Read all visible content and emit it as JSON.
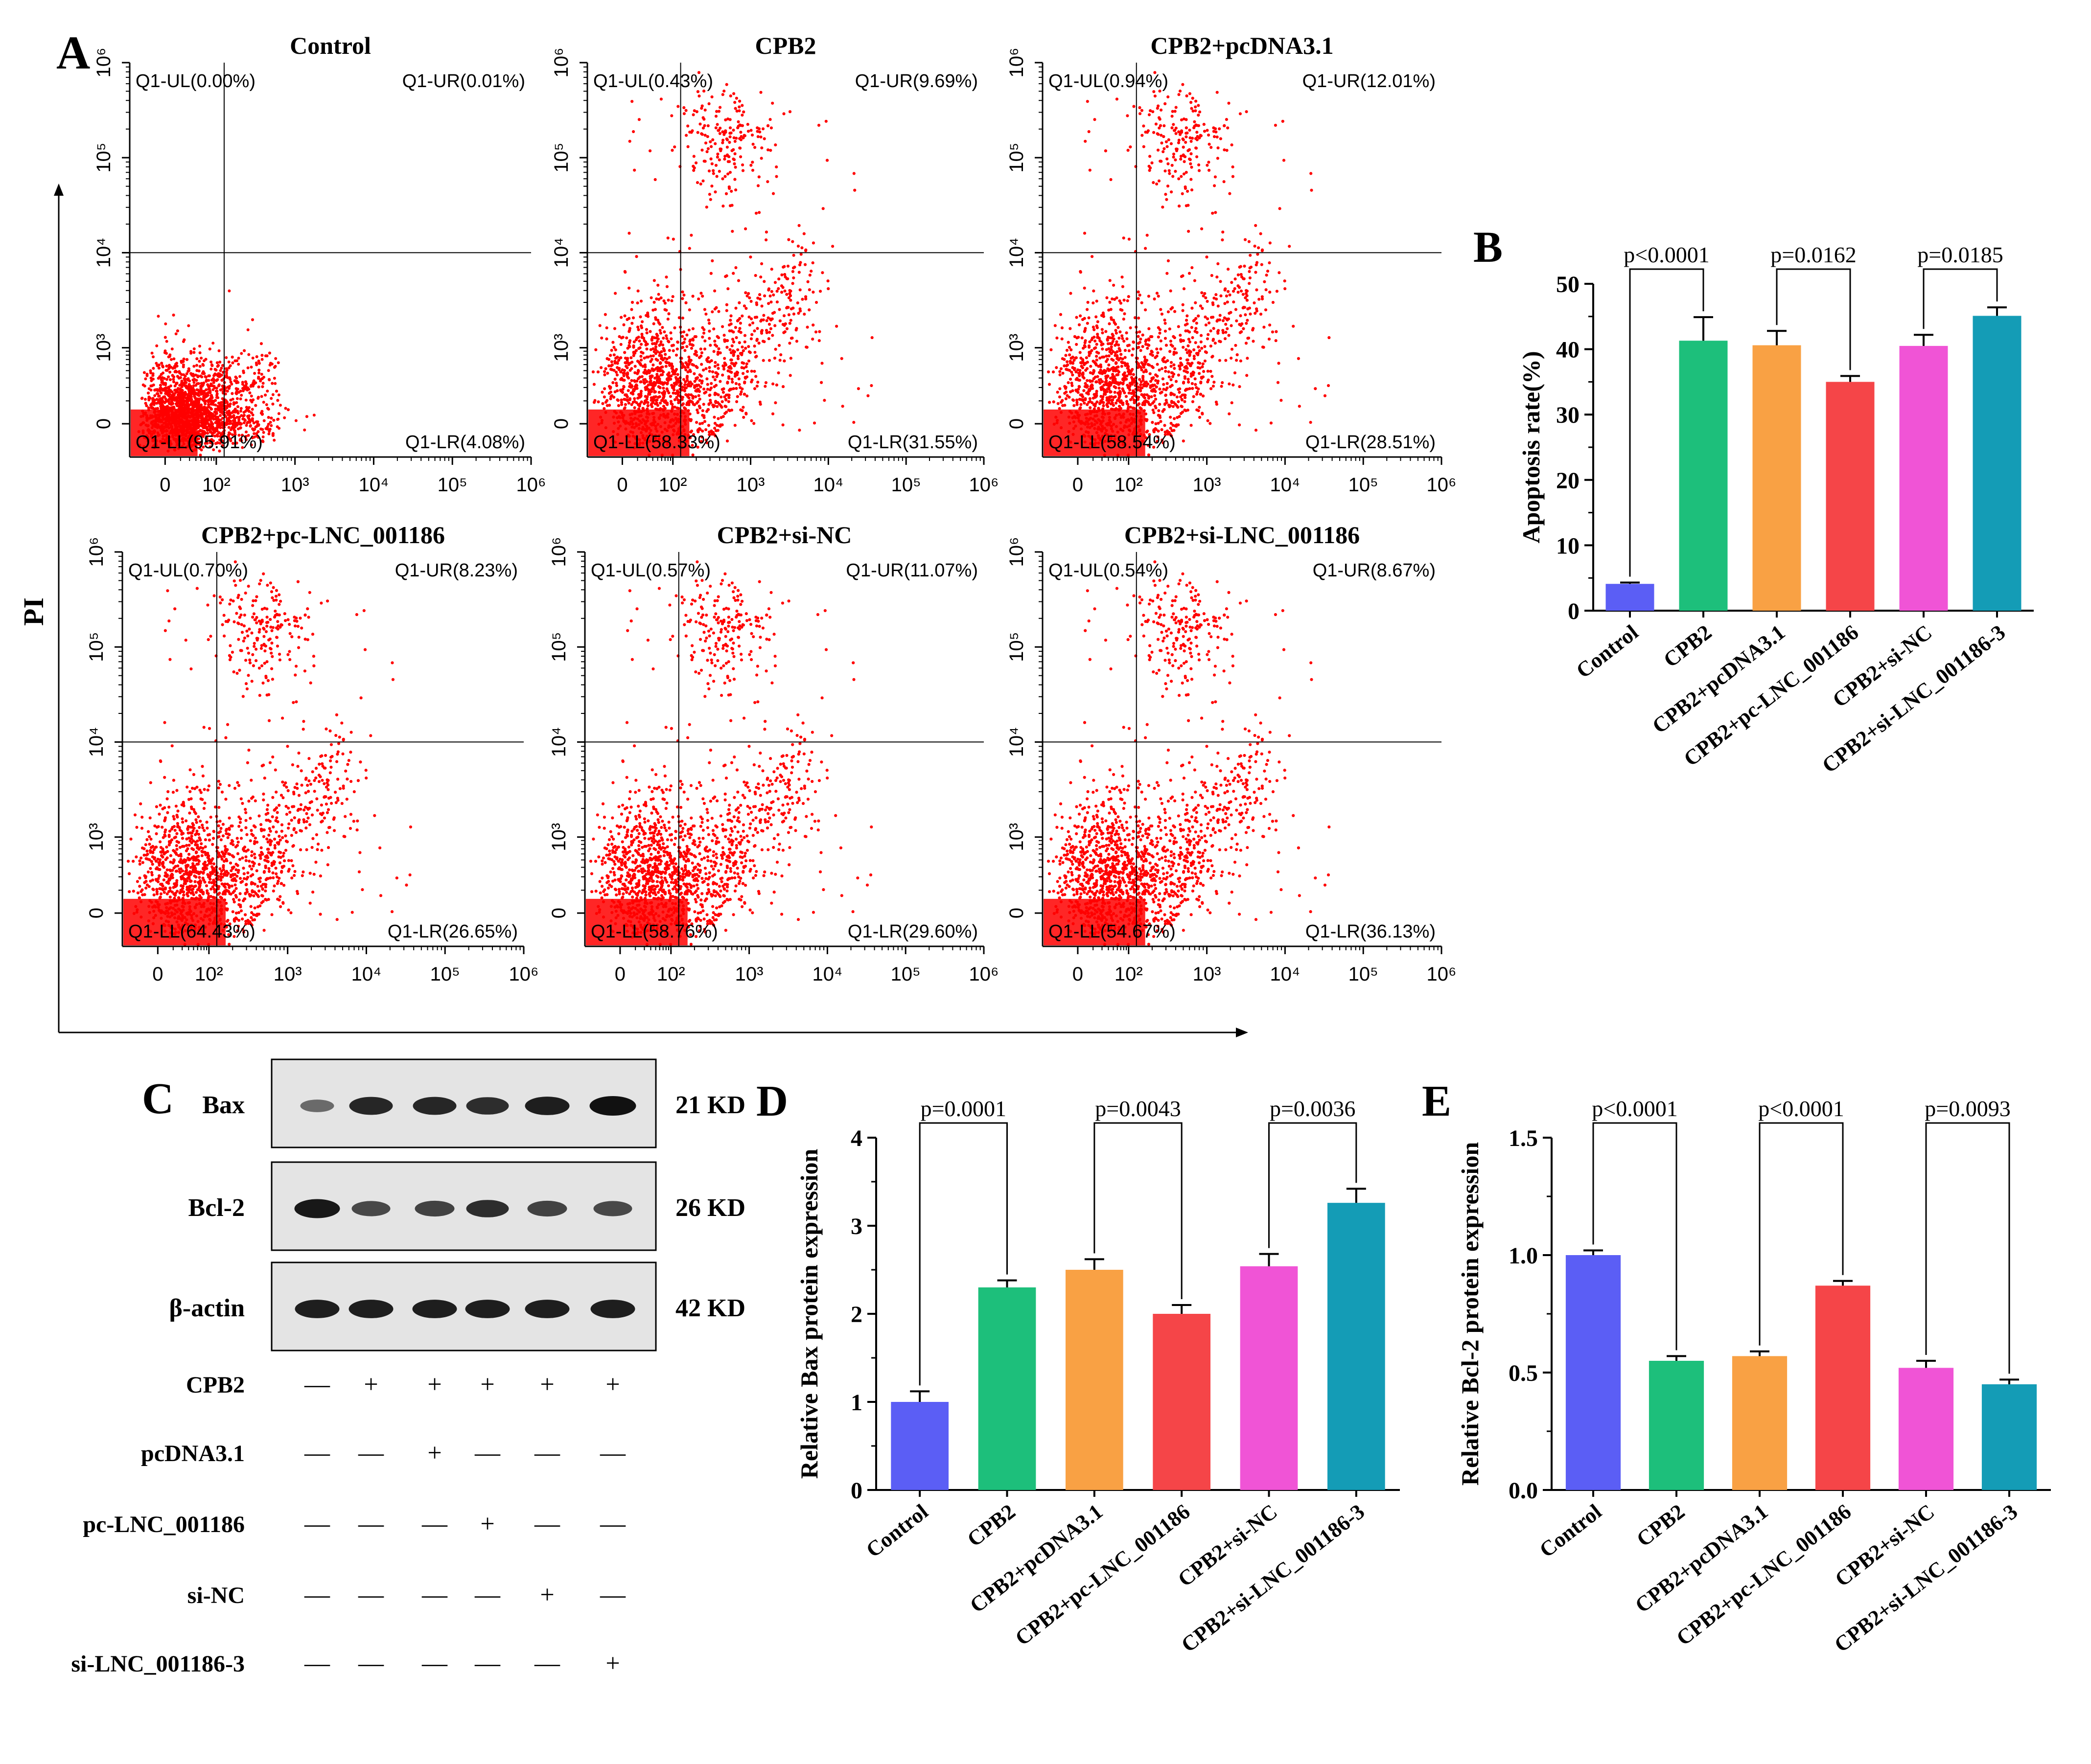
{
  "panel_letters": {
    "a": "A",
    "b": "B",
    "c": "C",
    "d": "D",
    "e": "E"
  },
  "flow": {
    "y_axis_label": "PI",
    "x_ticks": [
      "0",
      "10²",
      "10³",
      "10⁴",
      "10⁵",
      "10⁶"
    ],
    "y_ticks": [
      "0",
      "10³",
      "10⁴",
      "10⁵",
      "10⁶"
    ],
    "point_color": "#ff0000"
  },
  "blot": {
    "bands": [
      {
        "label": "Bax",
        "size": "21 KD"
      },
      {
        "label": "Bcl-2",
        "size": "26 KD"
      },
      {
        "label": "β-actin",
        "size": "42 KD"
      }
    ],
    "treatments": [
      {
        "label": "CPB2",
        "marks": [
          "—",
          "+",
          "+",
          "+",
          "+",
          "+"
        ]
      },
      {
        "label": "pcDNA3.1",
        "marks": [
          "—",
          "—",
          "+",
          "—",
          "—",
          "—"
        ]
      },
      {
        "label": "pc-LNC_001186",
        "marks": [
          "—",
          "—",
          "—",
          "+",
          "—",
          "—"
        ]
      },
      {
        "label": "si-NC",
        "marks": [
          "—",
          "—",
          "—",
          "—",
          "+",
          "—"
        ]
      },
      {
        "label": "si-LNC_001186-3",
        "marks": [
          "—",
          "—",
          "—",
          "—",
          "—",
          "+"
        ]
      }
    ]
  },
  "chart_data": [
    {
      "type": "scatter",
      "panel": "A",
      "title": "Control",
      "quadrants": {
        "ul": "Q1-UL(0.00%)",
        "ur": "Q1-UR(0.01%)",
        "ll": "Q1-LL(95.91%)",
        "lr": "Q1-LR(4.08%)"
      },
      "percentages": {
        "ul": 0.0,
        "ur": 0.01,
        "ll": 95.91,
        "lr": 4.08
      },
      "xlabel": "",
      "ylabel": "PI"
    },
    {
      "type": "scatter",
      "panel": "A",
      "title": "CPB2",
      "quadrants": {
        "ul": "Q1-UL(0.43%)",
        "ur": "Q1-UR(9.69%)",
        "ll": "Q1-LL(58.33%)",
        "lr": "Q1-LR(31.55%)"
      },
      "percentages": {
        "ul": 0.43,
        "ur": 9.69,
        "ll": 58.33,
        "lr": 31.55
      },
      "xlabel": "",
      "ylabel": "PI"
    },
    {
      "type": "scatter",
      "panel": "A",
      "title": "CPB2+pcDNA3.1",
      "quadrants": {
        "ul": "Q1-UL(0.94%)",
        "ur": "Q1-UR(12.01%)",
        "ll": "Q1-LL(58.54%)",
        "lr": "Q1-LR(28.51%)"
      },
      "percentages": {
        "ul": 0.94,
        "ur": 12.01,
        "ll": 58.54,
        "lr": 28.51
      },
      "xlabel": "",
      "ylabel": "PI"
    },
    {
      "type": "scatter",
      "panel": "A",
      "title": "CPB2+pc-LNC_001186",
      "quadrants": {
        "ul": "Q1-UL(0.70%)",
        "ur": "Q1-UR(8.23%)",
        "ll": "Q1-LL(64.43%)",
        "lr": "Q1-LR(26.65%)"
      },
      "percentages": {
        "ul": 0.7,
        "ur": 8.23,
        "ll": 64.43,
        "lr": 26.65
      },
      "xlabel": "",
      "ylabel": "PI"
    },
    {
      "type": "scatter",
      "panel": "A",
      "title": "CPB2+si-NC",
      "quadrants": {
        "ul": "Q1-UL(0.57%)",
        "ur": "Q1-UR(11.07%)",
        "ll": "Q1-LL(58.76%)",
        "lr": "Q1-LR(29.60%)"
      },
      "percentages": {
        "ul": 0.57,
        "ur": 11.07,
        "ll": 58.76,
        "lr": 29.6
      },
      "xlabel": "",
      "ylabel": "PI"
    },
    {
      "type": "scatter",
      "panel": "A",
      "title": "CPB2+si-LNC_001186",
      "quadrants": {
        "ul": "Q1-UL(0.54%)",
        "ur": "Q1-UR(8.67%)",
        "ll": "Q1-LL(54.67%)",
        "lr": "Q1-LR(36.13%)"
      },
      "percentages": {
        "ul": 0.54,
        "ur": 8.67,
        "ll": 54.67,
        "lr": 36.13
      },
      "xlabel": "",
      "ylabel": "PI"
    },
    {
      "type": "bar",
      "panel": "B",
      "categories": [
        "Control",
        "CPB2",
        "CPB2+pcDNA3.1",
        "CPB2+pc-LNC_001186",
        "CPB2+si-NC",
        "CPB2+si-LNC_001186-3"
      ],
      "values": [
        4.1,
        41.3,
        40.6,
        35.0,
        40.5,
        45.1
      ],
      "errors": [
        0.2,
        3.6,
        2.2,
        0.9,
        1.7,
        1.3
      ],
      "colors": [
        "#5b5ef5",
        "#1dbf7b",
        "#f9a144",
        "#f54548",
        "#f054d6",
        "#149cb6"
      ],
      "ylabel": "Apoptosis rate(%)",
      "ylim": [
        0,
        50
      ],
      "yticks": [
        "0",
        "10",
        "20",
        "30",
        "40",
        "50"
      ],
      "comparisons": [
        {
          "from": 0,
          "to": 1,
          "label": "p<0.0001"
        },
        {
          "from": 2,
          "to": 3,
          "label": "p=0.0162"
        },
        {
          "from": 4,
          "to": 5,
          "label": "p=0.0185"
        }
      ]
    },
    {
      "type": "bar",
      "panel": "D",
      "categories": [
        "Control",
        "CPB2",
        "CPB2+pcDNA3.1",
        "CPB2+pc-LNC_001186",
        "CPB2+si-NC",
        "CPB2+si-LNC_001186-3"
      ],
      "values": [
        1.0,
        2.3,
        2.5,
        2.0,
        2.54,
        3.26
      ],
      "errors": [
        0.12,
        0.08,
        0.12,
        0.1,
        0.14,
        0.16
      ],
      "colors": [
        "#5b5ef5",
        "#1dbf7b",
        "#f9a144",
        "#f54548",
        "#f054d6",
        "#149cb6"
      ],
      "ylabel": "Relative Bax protein expression",
      "ylim": [
        0,
        4
      ],
      "yticks": [
        "0",
        "1",
        "2",
        "3",
        "4"
      ],
      "comparisons": [
        {
          "from": 0,
          "to": 1,
          "label": "p=0.0001"
        },
        {
          "from": 2,
          "to": 3,
          "label": "p=0.0043"
        },
        {
          "from": 4,
          "to": 5,
          "label": "p=0.0036"
        }
      ]
    },
    {
      "type": "bar",
      "panel": "E",
      "categories": [
        "Control",
        "CPB2",
        "CPB2+pcDNA3.1",
        "CPB2+pc-LNC_001186",
        "CPB2+si-NC",
        "CPB2+si-LNC_001186-3"
      ],
      "values": [
        1.0,
        0.55,
        0.57,
        0.87,
        0.52,
        0.45
      ],
      "errors": [
        0.02,
        0.02,
        0.02,
        0.02,
        0.03,
        0.02
      ],
      "colors": [
        "#5b5ef5",
        "#1dbf7b",
        "#f9a144",
        "#f54548",
        "#f054d6",
        "#149cb6"
      ],
      "ylabel": "Relative Bcl-2 protein expression",
      "ylim": [
        0,
        1.5
      ],
      "yticks": [
        "0.0",
        "0.5",
        "1.0",
        "1.5"
      ],
      "comparisons": [
        {
          "from": 0,
          "to": 1,
          "label": "p<0.0001"
        },
        {
          "from": 2,
          "to": 3,
          "label": "p<0.0001"
        },
        {
          "from": 4,
          "to": 5,
          "label": "p=0.0093"
        }
      ]
    }
  ]
}
